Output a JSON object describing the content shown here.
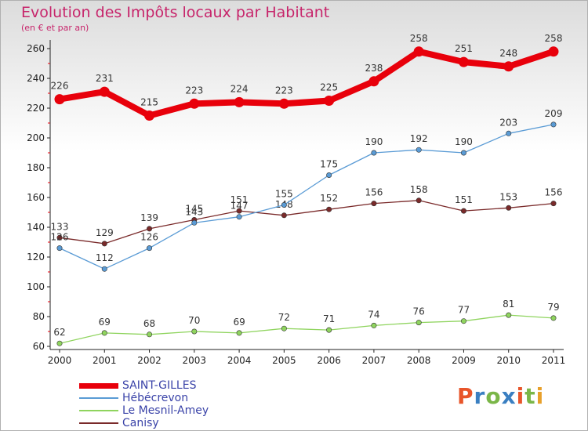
{
  "header": {
    "title": "Evolution des Impôts locaux par Habitant",
    "subtitle": "(en € et par an)"
  },
  "logo": {
    "text": "Proxiti",
    "colors": [
      "#e8552a",
      "#3a7fc1",
      "#7ab648",
      "#3a7fc1",
      "#e8552a",
      "#7ab648",
      "#e8a02a"
    ]
  },
  "chart_data": {
    "type": "line",
    "title": "Evolution des Impôts locaux par Habitant",
    "subtitle": "(en € et par an)",
    "xlabel": "",
    "ylabel": "",
    "x": [
      2000,
      2001,
      2002,
      2003,
      2004,
      2005,
      2006,
      2007,
      2008,
      2009,
      2010,
      2011
    ],
    "ylim": [
      60,
      260
    ],
    "yticks": [
      60,
      80,
      100,
      120,
      140,
      160,
      180,
      200,
      220,
      240,
      260
    ],
    "grid": false,
    "legend_position": "bottom-left",
    "series": [
      {
        "name": "SAINT-GILLES",
        "color": "#e8000b",
        "values": [
          226,
          231,
          215,
          223,
          224,
          223,
          225,
          238,
          258,
          251,
          248,
          258
        ]
      },
      {
        "name": "Hébécrevon",
        "color": "#5a9bd5",
        "values": [
          126,
          112,
          126,
          143,
          147,
          155,
          175,
          190,
          192,
          190,
          203,
          209
        ]
      },
      {
        "name": "Le Mesnil-Amey",
        "color": "#8fd45e",
        "values": [
          62,
          69,
          68,
          70,
          69,
          72,
          71,
          74,
          76,
          77,
          81,
          79
        ]
      },
      {
        "name": "Canisy",
        "color": "#7a2a2a",
        "values": [
          133,
          129,
          139,
          145,
          151,
          148,
          152,
          156,
          158,
          151,
          153,
          156
        ]
      }
    ]
  }
}
